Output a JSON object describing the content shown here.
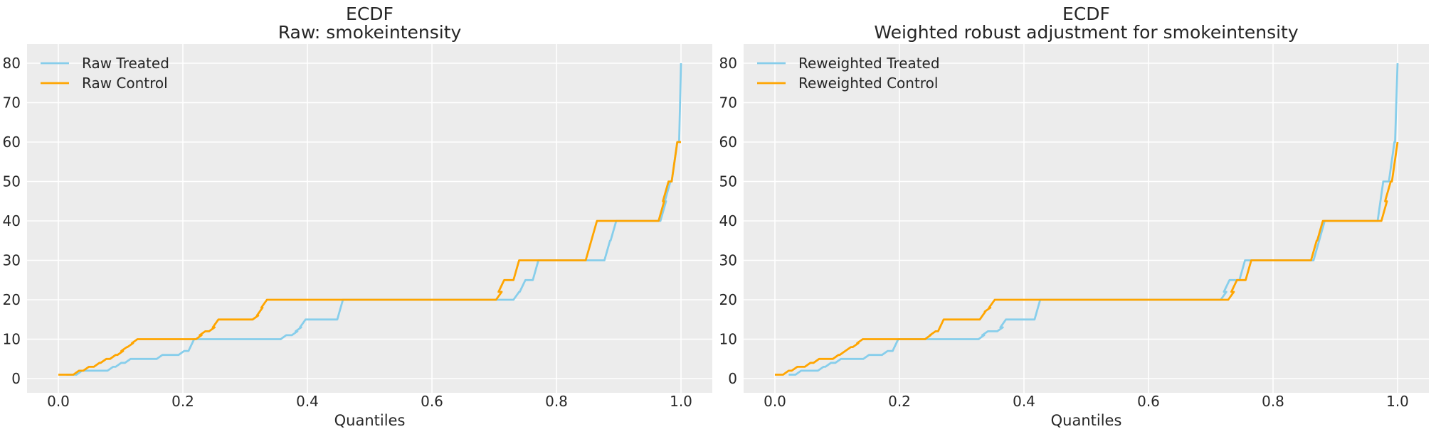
{
  "figure": {
    "background": "#ffffff",
    "axes_background": "#ececec",
    "grid_color": "#ffffff",
    "text_color": "#262626",
    "accent_treated": "#87CEEB",
    "accent_control": "#FFA500"
  },
  "chart_data": [
    {
      "type": "line",
      "title": "ECDF",
      "subtitle": "Raw: smokeintensity",
      "xlabel": "Quantiles",
      "ylabel": "",
      "xlim": [
        -0.05,
        1.05
      ],
      "ylim": [
        -3.6,
        84.9
      ],
      "grid": true,
      "legend_position": "upper left",
      "x_ticks": [
        [
          0.0,
          "0.0"
        ],
        [
          0.2,
          "0.2"
        ],
        [
          0.4,
          "0.4"
        ],
        [
          0.6,
          "0.6"
        ],
        [
          0.8,
          "0.8"
        ],
        [
          1.0,
          "1.0"
        ]
      ],
      "y_ticks": [
        [
          0,
          "0"
        ],
        [
          10,
          "10"
        ],
        [
          20,
          "20"
        ],
        [
          30,
          "30"
        ],
        [
          40,
          "40"
        ],
        [
          50,
          "50"
        ],
        [
          60,
          "60"
        ],
        [
          70,
          "70"
        ],
        [
          80,
          "80"
        ]
      ],
      "series": [
        {
          "name": "Raw Treated",
          "color": "#87CEEB",
          "step_points": [
            [
              0.013,
              1
            ],
            [
              0.029,
              2
            ],
            [
              0.079,
              3
            ],
            [
              0.092,
              4
            ],
            [
              0.107,
              5
            ],
            [
              0.158,
              6
            ],
            [
              0.193,
              7
            ],
            [
              0.209,
              10
            ],
            [
              0.357,
              11
            ],
            [
              0.375,
              12
            ],
            [
              0.381,
              13
            ],
            [
              0.388,
              15
            ],
            [
              0.448,
              20
            ],
            [
              0.731,
              22
            ],
            [
              0.741,
              25
            ],
            [
              0.762,
              30
            ],
            [
              0.877,
              35
            ],
            [
              0.887,
              40
            ],
            [
              0.967,
              45
            ],
            [
              0.974,
              50
            ],
            [
              0.985,
              60
            ],
            [
              0.997,
              80
            ],
            [
              1.0,
              80
            ]
          ]
        },
        {
          "name": "Raw Control",
          "color": "#FFA500",
          "step_points": [
            [
              0.0,
              1
            ],
            [
              0.024,
              2
            ],
            [
              0.04,
              3
            ],
            [
              0.057,
              4
            ],
            [
              0.068,
              5
            ],
            [
              0.083,
              6
            ],
            [
              0.095,
              7
            ],
            [
              0.101,
              8
            ],
            [
              0.111,
              9
            ],
            [
              0.118,
              10
            ],
            [
              0.221,
              11
            ],
            [
              0.227,
              12
            ],
            [
              0.242,
              13
            ],
            [
              0.248,
              15
            ],
            [
              0.312,
              16
            ],
            [
              0.319,
              18
            ],
            [
              0.326,
              20
            ],
            [
              0.703,
              22
            ],
            [
              0.707,
              25
            ],
            [
              0.731,
              30
            ],
            [
              0.847,
              35
            ],
            [
              0.856,
              40
            ],
            [
              0.964,
              45
            ],
            [
              0.971,
              50
            ],
            [
              0.985,
              60
            ],
            [
              1.0,
              60
            ]
          ]
        }
      ]
    },
    {
      "type": "line",
      "title": "ECDF",
      "subtitle": "Weighted robust adjustment for smokeintensity",
      "xlabel": "Quantiles",
      "ylabel": "",
      "xlim": [
        -0.05,
        1.05
      ],
      "ylim": [
        -3.6,
        84.9
      ],
      "grid": true,
      "legend_position": "upper left",
      "x_ticks": [
        [
          0.0,
          "0.0"
        ],
        [
          0.2,
          "0.2"
        ],
        [
          0.4,
          "0.4"
        ],
        [
          0.6,
          "0.6"
        ],
        [
          0.8,
          "0.8"
        ],
        [
          1.0,
          "1.0"
        ]
      ],
      "y_ticks": [
        [
          0,
          "0"
        ],
        [
          10,
          "10"
        ],
        [
          20,
          "20"
        ],
        [
          30,
          "30"
        ],
        [
          40,
          "40"
        ],
        [
          50,
          "50"
        ],
        [
          60,
          "60"
        ],
        [
          70,
          "70"
        ],
        [
          80,
          "80"
        ]
      ],
      "series": [
        {
          "name": "Reweighted Treated",
          "color": "#87CEEB",
          "step_points": [
            [
              0.022,
              1
            ],
            [
              0.033,
              2
            ],
            [
              0.069,
              3
            ],
            [
              0.081,
              4
            ],
            [
              0.097,
              5
            ],
            [
              0.142,
              6
            ],
            [
              0.172,
              7
            ],
            [
              0.189,
              10
            ],
            [
              0.327,
              11
            ],
            [
              0.333,
              12
            ],
            [
              0.357,
              13
            ],
            [
              0.362,
              15
            ],
            [
              0.417,
              20
            ],
            [
              0.716,
              22
            ],
            [
              0.721,
              25
            ],
            [
              0.746,
              30
            ],
            [
              0.865,
              35
            ],
            [
              0.874,
              40
            ],
            [
              0.968,
              50
            ],
            [
              0.986,
              60
            ],
            [
              0.996,
              80
            ],
            [
              1.0,
              80
            ]
          ]
        },
        {
          "name": "Reweighted Control",
          "color": "#FFA500",
          "step_points": [
            [
              0.0,
              1
            ],
            [
              0.013,
              2
            ],
            [
              0.027,
              3
            ],
            [
              0.048,
              4
            ],
            [
              0.062,
              5
            ],
            [
              0.093,
              6
            ],
            [
              0.104,
              7
            ],
            [
              0.113,
              8
            ],
            [
              0.125,
              9
            ],
            [
              0.132,
              10
            ],
            [
              0.241,
              11
            ],
            [
              0.249,
              12
            ],
            [
              0.262,
              15
            ],
            [
              0.329,
              17
            ],
            [
              0.337,
              18
            ],
            [
              0.344,
              20
            ],
            [
              0.728,
              22
            ],
            [
              0.733,
              25
            ],
            [
              0.756,
              30
            ],
            [
              0.861,
              35
            ],
            [
              0.871,
              40
            ],
            [
              0.974,
              45
            ],
            [
              0.98,
              50
            ],
            [
              0.991,
              60
            ],
            [
              1.0,
              60
            ]
          ]
        }
      ]
    }
  ]
}
